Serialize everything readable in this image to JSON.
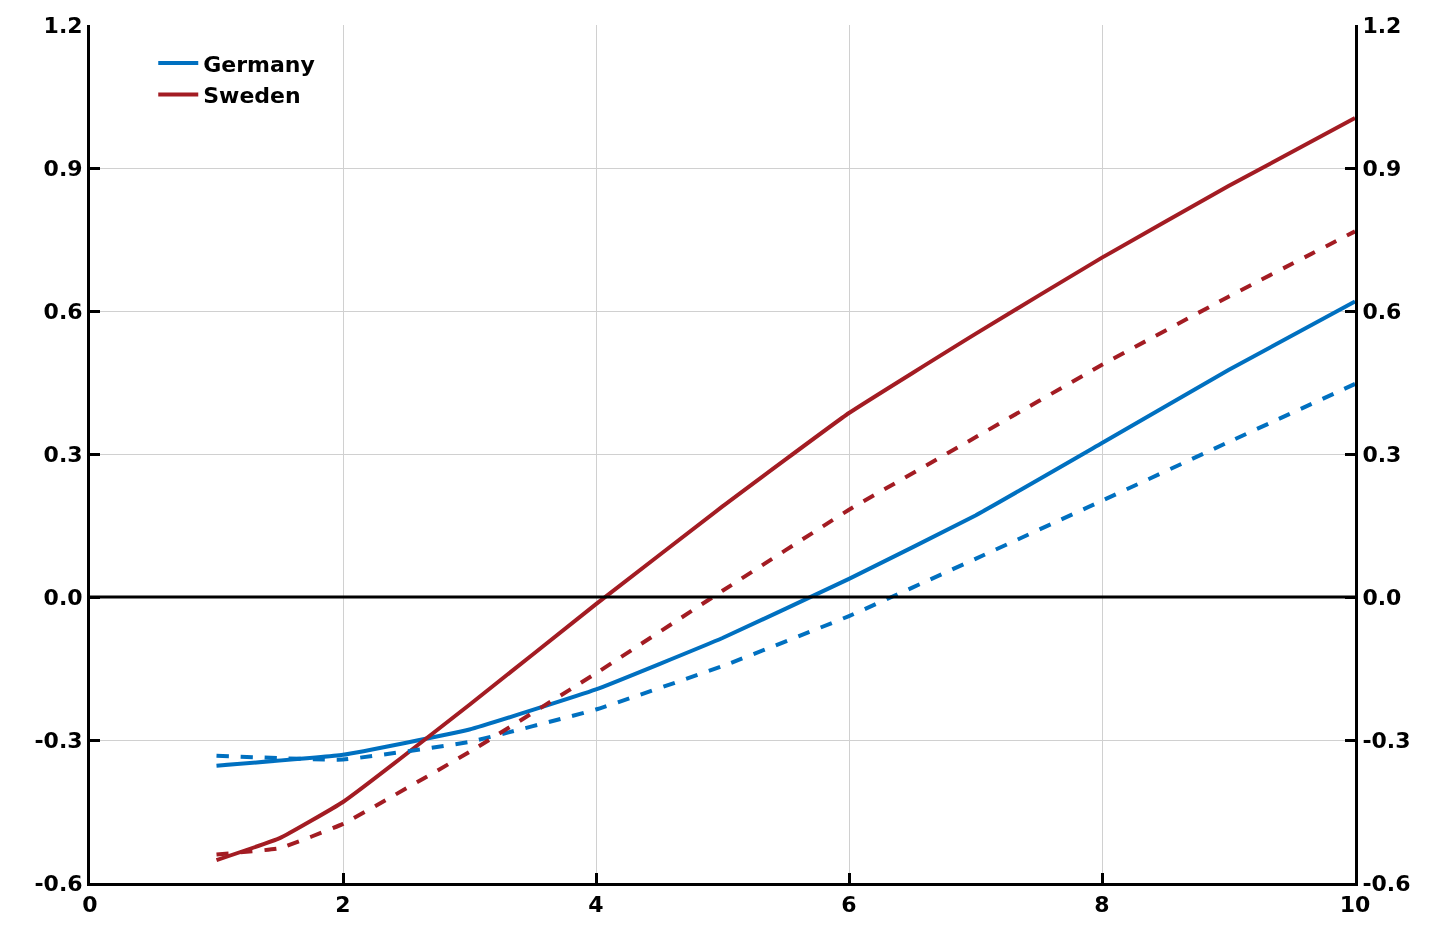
{
  "chart_data": {
    "type": "line",
    "x": [
      1,
      2,
      3,
      4,
      5,
      6,
      7,
      8,
      9,
      10
    ],
    "series": [
      {
        "name": "Germany",
        "color": "#0070c0",
        "line_style": "solid",
        "values": [
          -0.354,
          -0.331,
          -0.278,
          -0.194,
          -0.086,
          0.038,
          0.171,
          0.323,
          0.476,
          0.62
        ]
      },
      {
        "name": "Sweden",
        "color": "#a31c23",
        "line_style": "solid",
        "x": [
          1,
          1.5,
          2,
          3,
          4,
          5,
          6,
          7,
          8,
          9,
          10
        ],
        "values": [
          -0.552,
          -0.506,
          -0.43,
          -0.226,
          -0.015,
          0.19,
          0.386,
          0.552,
          0.712,
          0.862,
          1.005
        ]
      },
      {
        "color": "#0070c0",
        "line_style": "dashed",
        "values": [
          -0.333,
          -0.341,
          -0.304,
          -0.236,
          -0.145,
          -0.04,
          0.08,
          0.202,
          0.325,
          0.447
        ]
      },
      {
        "color": "#a31c23",
        "line_style": "dashed",
        "x": [
          1,
          1.5,
          2,
          3,
          4,
          5,
          6,
          7,
          8,
          9,
          10
        ],
        "values": [
          -0.54,
          -0.527,
          -0.476,
          -0.325,
          -0.16,
          0.013,
          0.183,
          0.335,
          0.487,
          0.63,
          0.767
        ]
      }
    ],
    "xlim": [
      0,
      10
    ],
    "xticks": [
      0,
      2,
      4,
      6,
      8,
      10
    ],
    "ylim": [
      -0.6,
      1.2
    ],
    "yticks": [
      -0.6,
      -0.3,
      {
        "value": 0,
        "label": "0.0"
      },
      0.3,
      0.6,
      0.9,
      1.2
    ],
    "y2lim": [
      -0.6,
      1.2
    ],
    "y2ticks": [
      -0.6,
      -0.3,
      {
        "value": 0,
        "label": "0.0"
      },
      0.3,
      0.6,
      0.9,
      1.2
    ],
    "ref_lines": [
      {
        "axis": "y",
        "value": 0,
        "color": "#000000"
      }
    ],
    "grid": true,
    "legend": "top left",
    "marker": "none"
  }
}
